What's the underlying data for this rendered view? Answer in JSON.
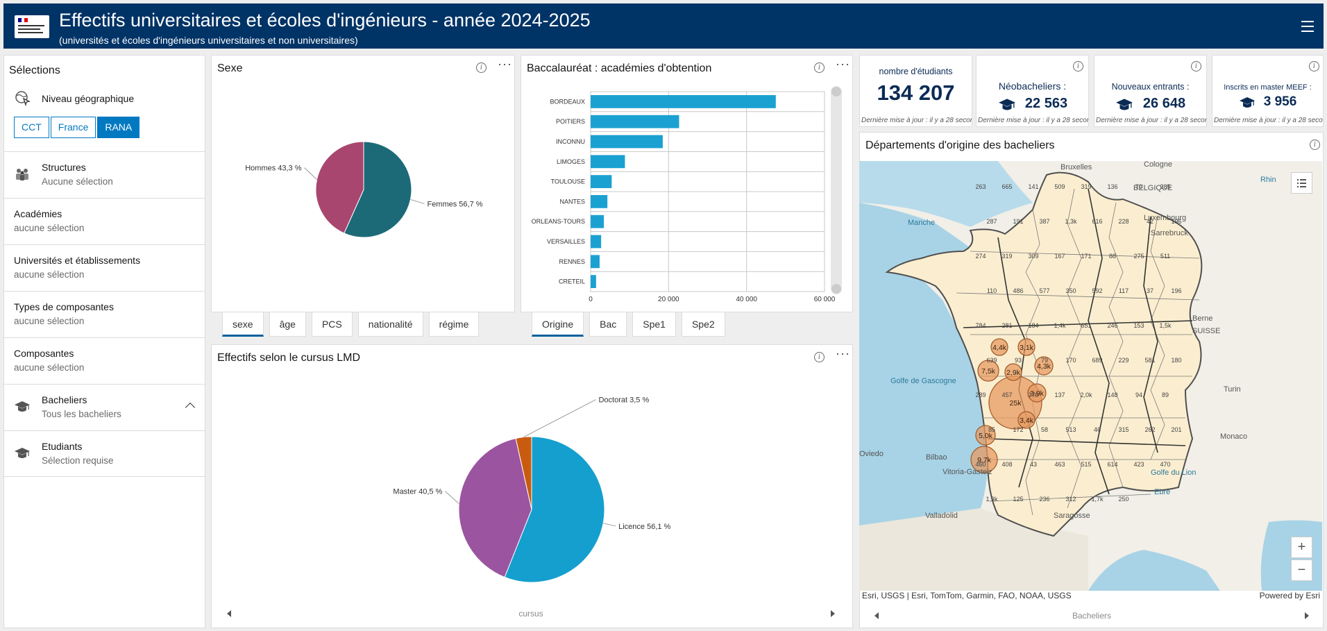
{
  "header": {
    "title": "Effectifs universitaires et écoles d'ingénieurs - année 2024-2025",
    "subtitle": "(universités et écoles d'ingénieurs universitaires et non universitaires)",
    "logo_text": "RÉGION ACADÉMIQUE NOUVELLE-AQUITAINE"
  },
  "sidebar": {
    "title": "Sélections",
    "geo_label": "Niveau géographique",
    "geo_options": [
      "CCT",
      "France",
      "RANA"
    ],
    "geo_selected": "RANA",
    "rows": [
      {
        "label": "Structures",
        "sub": "Aucune sélection"
      },
      {
        "label": "Académies",
        "sub": "aucune sélection"
      },
      {
        "label": "Universités et établissements",
        "sub": "aucune sélection"
      },
      {
        "label": "Types de composantes",
        "sub": "aucune sélection"
      },
      {
        "label": "Composantes",
        "sub": "aucune sélection"
      },
      {
        "label": "Bacheliers",
        "sub": "Tous les bacheliers"
      },
      {
        "label": "Etudiants",
        "sub": "Sélection requise"
      }
    ]
  },
  "sexe_panel": {
    "title": "Sexe",
    "tabs": [
      "sexe",
      "âge",
      "PCS",
      "nationalité",
      "régime"
    ],
    "active_tab": "sexe"
  },
  "bac_panel": {
    "title": "Baccalauréat : académies d'obtention",
    "tabs": [
      "Origine",
      "Bac",
      "Spe1",
      "Spe2"
    ],
    "active_tab": "Origine"
  },
  "lmd_panel": {
    "title": "Effectifs selon le cursus LMD",
    "axis_caption": "cursus"
  },
  "indicators": [
    {
      "title": "nombre d'étudiants",
      "value": "134 207",
      "footer": "Dernière mise à jour : il y a 28 secondes",
      "icon": false,
      "info": false
    },
    {
      "title": "Néobacheliers :",
      "value": "22 563",
      "footer": "Dernière mise à jour : il y a 28 secondes",
      "icon": true,
      "info": true
    },
    {
      "title": "Nouveaux entrants :",
      "value": "26 648",
      "footer": "Dernière mise à jour : il y a 28 secondes",
      "icon": true,
      "info": true
    },
    {
      "title": "Inscrits en master MEEF :",
      "value": "3 956",
      "footer": "Dernière mise à jour : il y a 28 secondes",
      "icon": true,
      "info": true
    }
  ],
  "map_panel": {
    "title": "Départements d'origine des bacheliers",
    "attribution": "Esri, USGS | Esri, TomTom, Garmin, FAO, NOAA, USGS",
    "powered": "Powered by Esri",
    "scroll_caption": "Bacheliers",
    "place_labels": [
      "Bruxelles",
      "Cologne",
      "BELGIQUE",
      "Luxembourg",
      "Sarrebruck",
      "Manche",
      "Golfe de Gascogne",
      "Berne",
      "SUISSE",
      "Turin",
      "Monaco",
      "Oviedo",
      "Bilbao",
      "Vitoria-Gasteiz",
      "Golfe du Lion",
      "Ebre",
      "Valladolid",
      "Saragosse",
      "Rhin"
    ],
    "bubbles": [
      "7,5k",
      "25k",
      "5,0k",
      "9,7k",
      "4,4k",
      "3,1k",
      "2,9k",
      "4,3k",
      "3,9k",
      "3,4k"
    ],
    "dept_values": [
      "263",
      "665",
      "141",
      "509",
      "319",
      "136",
      "70",
      "285",
      "287",
      "191",
      "387",
      "1,3k",
      "616",
      "228",
      "42",
      "196",
      "274",
      "319",
      "309",
      "167",
      "171",
      "88",
      "275",
      "511",
      "110",
      "486",
      "577",
      "350",
      "592",
      "117",
      "37",
      "196",
      "784",
      "281",
      "184",
      "1,4k",
      "651",
      "246",
      "153",
      "1,5k",
      "639",
      "93",
      "79",
      "170",
      "689",
      "229",
      "581",
      "180",
      "289",
      "457",
      "279",
      "137",
      "2,0k",
      "148",
      "94",
      "89",
      "85",
      "172",
      "58",
      "513",
      "46",
      "315",
      "262",
      "201",
      "460",
      "408",
      "43",
      "463",
      "515",
      "614",
      "423",
      "470",
      "1,3k",
      "125",
      "236",
      "312",
      "1,7k",
      "250"
    ]
  },
  "chart_data": [
    {
      "type": "pie",
      "title": "Sexe",
      "slices": [
        {
          "label": "Femmes 56,7 %",
          "value": 56.7,
          "color": "#1c6a78"
        },
        {
          "label": "Hommes 43,3 %",
          "value": 43.3,
          "color": "#a8466f"
        }
      ]
    },
    {
      "type": "bar",
      "orientation": "horizontal",
      "title": "Baccalauréat : académies d'obtention",
      "categories": [
        "BORDEAUX",
        "POITIERS",
        "INCONNU",
        "LIMOGES",
        "TOULOUSE",
        "NANTES",
        "ORLEANS-TOURS",
        "VERSAILLES",
        "RENNES",
        "CRETEIL"
      ],
      "values": [
        47500,
        22700,
        18500,
        8800,
        5400,
        4300,
        3400,
        2700,
        2300,
        1400
      ],
      "xlim": [
        0,
        60000
      ],
      "xticks": [
        "0",
        "20 000",
        "40 000",
        "60 000"
      ],
      "color": "#1ba1d1"
    },
    {
      "type": "pie",
      "title": "Effectifs selon le cursus LMD",
      "slices": [
        {
          "label": "Licence 56,1 %",
          "value": 56.1,
          "color": "#149fce"
        },
        {
          "label": "Master 40,5 %",
          "value": 40.5,
          "color": "#9b54a0"
        },
        {
          "label": "Doctorat 3,5 %",
          "value": 3.5,
          "color": "#c95b10"
        }
      ]
    }
  ]
}
